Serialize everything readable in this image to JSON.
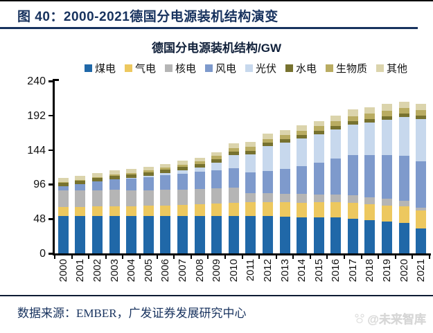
{
  "figure": {
    "caption": "图  40：2000-2021德国分电源装机结构演变",
    "source_note": "数据来源：EMBER，广发证券发展研究中心",
    "watermark": "@未来智库"
  },
  "chart_data": {
    "type": "bar",
    "stacked": true,
    "title": "德国分电源装机结构/GW",
    "xlabel": "",
    "ylabel": "GW",
    "ylim": [
      0,
      240
    ],
    "yticks": [
      0,
      48,
      96,
      144,
      192,
      240
    ],
    "grid": false,
    "legend_position": "top",
    "categories": [
      "2000",
      "2001",
      "2002",
      "2003",
      "2004",
      "2005",
      "2006",
      "2007",
      "2008",
      "2009",
      "2010",
      "2011",
      "2012",
      "2013",
      "2014",
      "2015",
      "2016",
      "2017",
      "2018",
      "2019",
      "2020",
      "2021"
    ],
    "series": [
      {
        "name": "煤电",
        "color": "#2068a8",
        "values": [
          52,
          52,
          52,
          52,
          52,
          52,
          52,
          52,
          52,
          52,
          52,
          52,
          52,
          51,
          50,
          50,
          50,
          48,
          46,
          44,
          42,
          35
        ]
      },
      {
        "name": "气电",
        "color": "#edc85f",
        "values": [
          13,
          13,
          13.5,
          14,
          14,
          14.5,
          15,
          15.5,
          16,
          17,
          18,
          19,
          19.5,
          20,
          20.5,
          21,
          21.5,
          22,
          22.5,
          23,
          23.5,
          25
        ]
      },
      {
        "name": "核电",
        "color": "#b5b5b5",
        "values": [
          22.4,
          22.4,
          22.4,
          22.4,
          21.4,
          21.4,
          21.4,
          21.4,
          21.4,
          21.4,
          21.4,
          12.7,
          12.1,
          12.1,
          12.1,
          10.8,
          10.8,
          10.8,
          9.5,
          9.5,
          8.1,
          4.1
        ]
      },
      {
        "name": "风电",
        "color": "#7e9acc",
        "values": [
          6.1,
          8.8,
          12,
          14.6,
          16.6,
          18.4,
          20.6,
          22.2,
          23.9,
          25.7,
          27.2,
          29.1,
          31.3,
          34.3,
          39.2,
          44.6,
          49.5,
          55.9,
          58.9,
          60.8,
          62.2,
          63.8
        ]
      },
      {
        "name": "光伏",
        "color": "#c7d8ed",
        "values": [
          0.1,
          0.2,
          0.3,
          0.4,
          1.1,
          2.1,
          2.9,
          4.2,
          6.1,
          10.6,
          18,
          25.4,
          34.1,
          36.7,
          37.9,
          39.2,
          40.7,
          42.3,
          45.2,
          48.9,
          53.7,
          58.7
        ]
      },
      {
        "name": "水电",
        "color": "#77722f",
        "values": [
          4.8,
          4.8,
          4.8,
          4.8,
          4.8,
          4.8,
          4.8,
          4.8,
          4.8,
          4.8,
          4.8,
          4.8,
          4.8,
          4.8,
          4.8,
          4.8,
          4.8,
          4.8,
          4.8,
          4.8,
          4.8,
          4.8
        ]
      },
      {
        "name": "生物质",
        "color": "#b9ac62",
        "values": [
          1,
          1.2,
          1.4,
          1.6,
          1.9,
          2.3,
          2.7,
          3.2,
          3.7,
          4.2,
          4.7,
          5.2,
          5.7,
          6.1,
          6.5,
          6.9,
          7.2,
          7.5,
          7.8,
          8,
          8.2,
          8.3
        ]
      },
      {
        "name": "其他",
        "color": "#dbd4ac",
        "values": [
          5.5,
          5.5,
          5.5,
          5.5,
          5.5,
          5.5,
          5.5,
          5.5,
          5.5,
          5.5,
          7,
          7,
          7,
          7,
          7,
          7,
          7,
          9,
          9,
          9,
          9,
          9
        ]
      }
    ]
  }
}
